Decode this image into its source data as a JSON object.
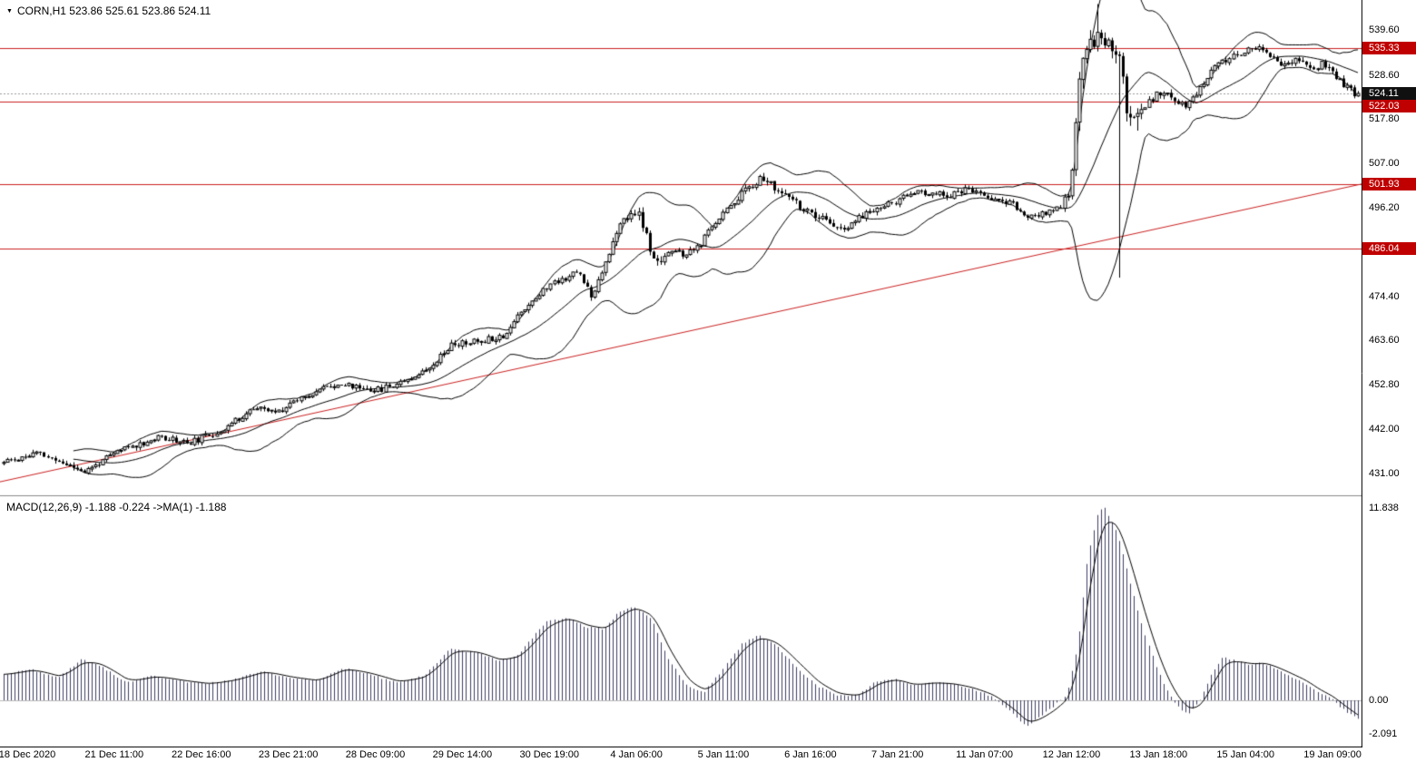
{
  "header": {
    "symbol_info": "CORN,H1 523.86 525.61 523.86 524.11"
  },
  "macd_panel": {
    "label": "MACD(12,26,9) -1.188 -0.224  ->MA(1) -1.188"
  },
  "price_axis": {
    "ticks": [
      "539.60",
      "528.60",
      "517.80",
      "507.00",
      "496.20",
      "474.40",
      "463.60",
      "452.80",
      "442.00",
      "431.00"
    ],
    "badges": [
      {
        "value": "535.33",
        "price": 535.33,
        "style": "red"
      },
      {
        "value": "524.11",
        "price": 524.11,
        "style": "black"
      },
      {
        "value": "522.03",
        "price": 522.03,
        "style": "red"
      },
      {
        "value": "501.93",
        "price": 501.93,
        "style": "red"
      },
      {
        "value": "486.04",
        "price": 486.04,
        "style": "red"
      }
    ]
  },
  "macd_axis": {
    "ticks": [
      "11.838",
      "0.00",
      "-2.091"
    ]
  },
  "time_axis": {
    "labels": [
      "18 Dec 2020",
      "21 Dec 11:00",
      "22 Dec 16:00",
      "23 Dec 21:00",
      "28 Dec 09:00",
      "29 Dec 14:00",
      "30 Dec 19:00",
      "4 Jan 06:00",
      "5 Jan 11:00",
      "6 Jan 16:00",
      "7 Jan 21:00",
      "11 Jan 07:00",
      "12 Jan 12:00",
      "13 Jan 18:00",
      "15 Jan 04:00",
      "19 Jan 09:00"
    ]
  },
  "chart_data": {
    "type": "candlestick",
    "symbol": "CORN",
    "timeframe": "H1",
    "title": "CORN,H1",
    "ohlc_current": {
      "open": 523.86,
      "high": 525.61,
      "low": 523.86,
      "close": 524.11
    },
    "price_range_visible": [
      425.7,
      547.0
    ],
    "y_ticks": [
      539.6,
      528.6,
      517.8,
      507.0,
      496.2,
      474.4,
      463.6,
      452.8,
      442.0,
      431.0
    ],
    "x_ticks": [
      "18 Dec 2020",
      "21 Dec 11:00",
      "22 Dec 16:00",
      "23 Dec 21:00",
      "28 Dec 09:00",
      "29 Dec 14:00",
      "30 Dec 19:00",
      "4 Jan 06:00",
      "5 Jan 11:00",
      "6 Jan 16:00",
      "7 Jan 21:00",
      "11 Jan 07:00",
      "12 Jan 12:00",
      "13 Jan 18:00",
      "15 Jan 04:00",
      "19 Jan 09:00"
    ],
    "horizontal_levels": [
      535.33,
      522.03,
      501.93,
      486.04
    ],
    "current_price_line": 524.11,
    "trendline": {
      "start_price": 429.0,
      "end_price": 501.93
    },
    "bollinger": {
      "period": 20,
      "deviation": 2
    },
    "price_path": [
      [
        0.0,
        433.5
      ],
      [
        0.027,
        436.0
      ],
      [
        0.063,
        431.5
      ],
      [
        0.09,
        437.0
      ],
      [
        0.12,
        440.0
      ],
      [
        0.14,
        438.5
      ],
      [
        0.163,
        441.5
      ],
      [
        0.187,
        447.0
      ],
      [
        0.205,
        446.0
      ],
      [
        0.22,
        449.5
      ],
      [
        0.247,
        453.0
      ],
      [
        0.28,
        451.5
      ],
      [
        0.313,
        456.0
      ],
      [
        0.333,
        462.5
      ],
      [
        0.353,
        463.5
      ],
      [
        0.373,
        465.0
      ],
      [
        0.383,
        470.0
      ],
      [
        0.393,
        473.5
      ],
      [
        0.407,
        477.5
      ],
      [
        0.427,
        480.5
      ],
      [
        0.437,
        474.5
      ],
      [
        0.447,
        483.0
      ],
      [
        0.46,
        493.0
      ],
      [
        0.47,
        495.5
      ],
      [
        0.477,
        489.0
      ],
      [
        0.483,
        482.0
      ],
      [
        0.493,
        485.5
      ],
      [
        0.507,
        484.5
      ],
      [
        0.517,
        487.0
      ],
      [
        0.53,
        493.5
      ],
      [
        0.54,
        497.0
      ],
      [
        0.553,
        501.5
      ],
      [
        0.563,
        503.5
      ],
      [
        0.573,
        500.5
      ],
      [
        0.587,
        497.5
      ],
      [
        0.6,
        494.0
      ],
      [
        0.613,
        492.5
      ],
      [
        0.623,
        490.0
      ],
      [
        0.633,
        493.5
      ],
      [
        0.647,
        496.0
      ],
      [
        0.66,
        497.5
      ],
      [
        0.673,
        499.5
      ],
      [
        0.687,
        500.0
      ],
      [
        0.7,
        499.0
      ],
      [
        0.713,
        500.5
      ],
      [
        0.723,
        499.5
      ],
      [
        0.733,
        498.5
      ],
      [
        0.747,
        497.0
      ],
      [
        0.76,
        493.5
      ],
      [
        0.773,
        495.0
      ],
      [
        0.783,
        496.5
      ],
      [
        0.79,
        500.0
      ],
      [
        0.795,
        520.0
      ],
      [
        0.8,
        536.0
      ],
      [
        0.81,
        538.0
      ],
      [
        0.82,
        536.5
      ],
      [
        0.827,
        531.0
      ],
      [
        0.832,
        521.0
      ],
      [
        0.84,
        518.0
      ],
      [
        0.847,
        522.0
      ],
      [
        0.857,
        524.5
      ],
      [
        0.867,
        522.5
      ],
      [
        0.877,
        521.0
      ],
      [
        0.887,
        526.0
      ],
      [
        0.897,
        530.5
      ],
      [
        0.907,
        532.5
      ],
      [
        0.917,
        534.0
      ],
      [
        0.927,
        535.5
      ],
      [
        0.937,
        533.0
      ],
      [
        0.947,
        531.5
      ],
      [
        0.957,
        532.5
      ],
      [
        0.967,
        530.0
      ],
      [
        0.977,
        531.5
      ],
      [
        0.987,
        528.0
      ],
      [
        0.993,
        526.0
      ],
      [
        1.0,
        524.1
      ]
    ],
    "volatility_path": [
      [
        0.0,
        1.4
      ],
      [
        0.44,
        1.6
      ],
      [
        0.46,
        2.2
      ],
      [
        0.48,
        2.4
      ],
      [
        0.5,
        1.5
      ],
      [
        0.56,
        1.8
      ],
      [
        0.78,
        1.3
      ],
      [
        0.79,
        2.5
      ],
      [
        0.795,
        5.0
      ],
      [
        0.805,
        4.0
      ],
      [
        0.815,
        2.5
      ],
      [
        0.825,
        5.0
      ],
      [
        0.835,
        3.5
      ],
      [
        0.85,
        2.0
      ],
      [
        0.87,
        1.6
      ],
      [
        1.0,
        1.5
      ]
    ],
    "long_wicks": [
      {
        "t": 0.808,
        "high": 546.0
      },
      {
        "t": 0.824,
        "low": 479.0
      },
      {
        "t": 0.838,
        "low": 515.0
      }
    ],
    "macd": {
      "params": [
        12,
        26,
        9
      ],
      "main_value": -1.188,
      "signal_value": -0.224,
      "ma_label_value": -1.188,
      "y_ticks": [
        11.838,
        0.0,
        -2.091
      ],
      "range": [
        -2.9,
        12.7
      ],
      "main_path": [
        [
          0.0,
          1.6
        ],
        [
          0.02,
          1.9
        ],
        [
          0.04,
          1.4
        ],
        [
          0.057,
          2.5
        ],
        [
          0.07,
          2.2
        ],
        [
          0.09,
          1.1
        ],
        [
          0.11,
          1.5
        ],
        [
          0.13,
          1.2
        ],
        [
          0.15,
          1.0
        ],
        [
          0.17,
          1.3
        ],
        [
          0.19,
          1.8
        ],
        [
          0.21,
          1.4
        ],
        [
          0.23,
          1.2
        ],
        [
          0.25,
          2.0
        ],
        [
          0.27,
          1.6
        ],
        [
          0.29,
          1.1
        ],
        [
          0.31,
          1.5
        ],
        [
          0.33,
          3.2
        ],
        [
          0.35,
          2.9
        ],
        [
          0.365,
          2.4
        ],
        [
          0.38,
          2.8
        ],
        [
          0.4,
          4.8
        ],
        [
          0.415,
          5.1
        ],
        [
          0.43,
          4.5
        ],
        [
          0.443,
          4.4
        ],
        [
          0.455,
          5.5
        ],
        [
          0.465,
          5.8
        ],
        [
          0.478,
          5.0
        ],
        [
          0.49,
          2.6
        ],
        [
          0.505,
          0.8
        ],
        [
          0.517,
          0.5
        ],
        [
          0.53,
          1.8
        ],
        [
          0.545,
          3.5
        ],
        [
          0.557,
          4.0
        ],
        [
          0.57,
          3.4
        ],
        [
          0.585,
          2.1
        ],
        [
          0.6,
          0.9
        ],
        [
          0.615,
          0.3
        ],
        [
          0.63,
          0.3
        ],
        [
          0.645,
          1.2
        ],
        [
          0.658,
          1.3
        ],
        [
          0.67,
          0.9
        ],
        [
          0.685,
          1.1
        ],
        [
          0.7,
          1.0
        ],
        [
          0.715,
          0.7
        ],
        [
          0.73,
          0.2
        ],
        [
          0.745,
          -0.8
        ],
        [
          0.755,
          -1.6
        ],
        [
          0.765,
          -1.0
        ],
        [
          0.775,
          -0.4
        ],
        [
          0.785,
          0.4
        ],
        [
          0.793,
          3.5
        ],
        [
          0.8,
          8.8
        ],
        [
          0.808,
          11.6
        ],
        [
          0.813,
          11.8
        ],
        [
          0.822,
          10.4
        ],
        [
          0.832,
          7.2
        ],
        [
          0.842,
          4.2
        ],
        [
          0.852,
          1.8
        ],
        [
          0.86,
          0.4
        ],
        [
          0.868,
          -0.5
        ],
        [
          0.875,
          -0.8
        ],
        [
          0.883,
          -0.1
        ],
        [
          0.892,
          1.6
        ],
        [
          0.9,
          2.7
        ],
        [
          0.91,
          2.4
        ],
        [
          0.92,
          2.2
        ],
        [
          0.93,
          2.3
        ],
        [
          0.94,
          1.9
        ],
        [
          0.95,
          1.5
        ],
        [
          0.96,
          1.1
        ],
        [
          0.97,
          0.5
        ],
        [
          0.98,
          0.1
        ],
        [
          0.988,
          -0.5
        ],
        [
          1.0,
          -1.188
        ]
      ]
    },
    "colors": {
      "background": "#ffffff",
      "candle": "#000000",
      "band": "#000000",
      "level_red": "#cc2020",
      "badge_red": "#c00000",
      "badge_black": "#101010",
      "current_line": "#9a9a9a",
      "macd_hist": "#3e3e64",
      "macd_signal": "#000000",
      "axis": "#000000",
      "zero_line": "#bbbbbb",
      "separator": "#8a8a8a"
    }
  }
}
